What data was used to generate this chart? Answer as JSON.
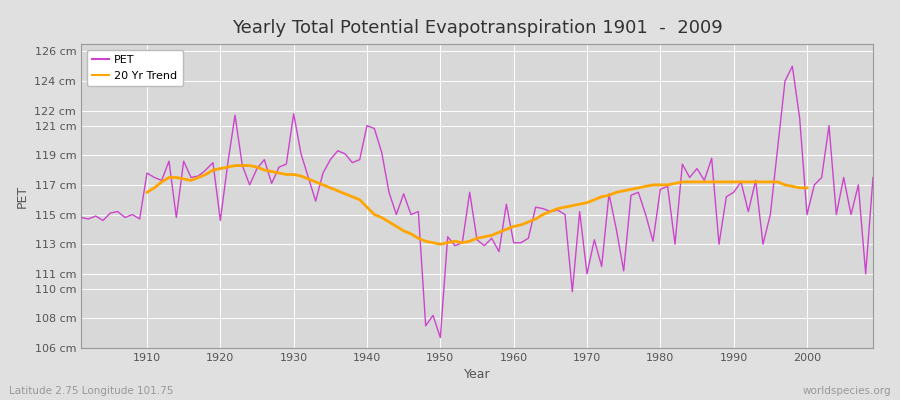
{
  "title": "Yearly Total Potential Evapotranspiration 1901  -  2009",
  "xlabel": "Year",
  "ylabel": "PET",
  "subtitle_left": "Latitude 2.75 Longitude 101.75",
  "subtitle_right": "worldspecies.org",
  "fig_bg_color": "#e0e0e0",
  "plot_bg_color": "#d8d8d8",
  "grid_color": "#ffffff",
  "pet_color": "#cc44cc",
  "trend_color": "#ffa500",
  "xlim": [
    1901,
    2009
  ],
  "ylim": [
    106,
    126.5
  ],
  "ytick_vals": [
    106,
    108,
    110,
    111,
    113,
    115,
    117,
    119,
    121,
    122,
    124,
    126
  ],
  "xtick_vals": [
    1910,
    1920,
    1930,
    1940,
    1950,
    1960,
    1970,
    1980,
    1990,
    2000
  ],
  "years": [
    1901,
    1902,
    1903,
    1904,
    1905,
    1906,
    1907,
    1908,
    1909,
    1910,
    1911,
    1912,
    1913,
    1914,
    1915,
    1916,
    1917,
    1918,
    1919,
    1920,
    1921,
    1922,
    1923,
    1924,
    1925,
    1926,
    1927,
    1928,
    1929,
    1930,
    1931,
    1932,
    1933,
    1934,
    1935,
    1936,
    1937,
    1938,
    1939,
    1940,
    1941,
    1942,
    1943,
    1944,
    1945,
    1946,
    1947,
    1948,
    1949,
    1950,
    1951,
    1952,
    1953,
    1954,
    1955,
    1956,
    1957,
    1958,
    1959,
    1960,
    1961,
    1962,
    1963,
    1964,
    1965,
    1966,
    1967,
    1968,
    1969,
    1970,
    1971,
    1972,
    1973,
    1974,
    1975,
    1976,
    1977,
    1978,
    1979,
    1980,
    1981,
    1982,
    1983,
    1984,
    1985,
    1986,
    1987,
    1988,
    1989,
    1990,
    1991,
    1992,
    1993,
    1994,
    1995,
    1996,
    1997,
    1998,
    1999,
    2000,
    2001,
    2002,
    2003,
    2004,
    2005,
    2006,
    2007,
    2008,
    2009
  ],
  "pet": [
    114.8,
    114.7,
    114.9,
    114.6,
    115.1,
    115.2,
    114.8,
    115.0,
    114.7,
    117.8,
    117.5,
    117.3,
    118.6,
    114.8,
    118.6,
    117.5,
    117.6,
    118.0,
    118.5,
    114.6,
    118.4,
    121.7,
    118.3,
    117.0,
    118.1,
    118.7,
    117.1,
    118.2,
    118.4,
    121.8,
    119.1,
    117.5,
    115.9,
    117.8,
    118.7,
    119.3,
    119.1,
    118.5,
    118.7,
    121.0,
    120.8,
    119.2,
    116.5,
    115.0,
    116.4,
    115.0,
    115.2,
    107.5,
    108.2,
    106.7,
    113.5,
    112.9,
    113.1,
    116.5,
    113.3,
    112.9,
    113.4,
    112.5,
    115.7,
    113.1,
    113.1,
    113.4,
    115.5,
    115.4,
    115.2,
    115.3,
    115.0,
    109.8,
    115.2,
    111.0,
    113.3,
    111.5,
    116.4,
    114.0,
    111.2,
    116.3,
    116.5,
    115.0,
    113.2,
    116.7,
    116.9,
    113.0,
    118.4,
    117.5,
    118.1,
    117.3,
    118.8,
    113.0,
    116.2,
    116.5,
    117.2,
    115.2,
    117.3,
    113.0,
    115.0,
    119.5,
    124.0,
    125.0,
    121.5,
    115.0,
    117.0,
    117.5,
    121.0,
    115.0,
    117.5,
    115.0,
    117.0,
    111.0,
    117.5
  ],
  "trend_years": [
    1910,
    1911,
    1912,
    1913,
    1914,
    1915,
    1916,
    1917,
    1918,
    1919,
    1920,
    1921,
    1922,
    1923,
    1924,
    1925,
    1926,
    1927,
    1928,
    1929,
    1930,
    1931,
    1932,
    1933,
    1934,
    1935,
    1936,
    1937,
    1938,
    1939,
    1940,
    1941,
    1942,
    1943,
    1944,
    1945,
    1946,
    1947,
    1948,
    1949,
    1950,
    1951,
    1952,
    1953,
    1954,
    1955,
    1956,
    1957,
    1958,
    1959,
    1960,
    1961,
    1962,
    1963,
    1964,
    1965,
    1966,
    1967,
    1968,
    1969,
    1970,
    1971,
    1972,
    1973,
    1974,
    1975,
    1976,
    1977,
    1978,
    1979,
    1980,
    1981,
    1982,
    1983,
    1984,
    1985,
    1986,
    1987,
    1988,
    1989,
    1990,
    1991,
    1992,
    1993,
    1994,
    1995,
    1996,
    1997,
    1998,
    1999,
    2000
  ],
  "trend": [
    116.5,
    116.8,
    117.2,
    117.5,
    117.5,
    117.4,
    117.3,
    117.5,
    117.7,
    118.0,
    118.1,
    118.2,
    118.3,
    118.3,
    118.3,
    118.2,
    118.0,
    117.9,
    117.8,
    117.7,
    117.7,
    117.6,
    117.4,
    117.2,
    117.0,
    116.8,
    116.6,
    116.4,
    116.2,
    116.0,
    115.5,
    115.0,
    114.8,
    114.5,
    114.2,
    113.9,
    113.7,
    113.4,
    113.2,
    113.1,
    113.0,
    113.1,
    113.2,
    113.1,
    113.2,
    113.4,
    113.5,
    113.6,
    113.8,
    114.0,
    114.2,
    114.3,
    114.5,
    114.7,
    115.0,
    115.2,
    115.4,
    115.5,
    115.6,
    115.7,
    115.8,
    116.0,
    116.2,
    116.3,
    116.5,
    116.6,
    116.7,
    116.8,
    116.9,
    117.0,
    117.0,
    117.0,
    117.1,
    117.2,
    117.2,
    117.2,
    117.2,
    117.2,
    117.2,
    117.2,
    117.2,
    117.2,
    117.2,
    117.2,
    117.2,
    117.2,
    117.2,
    117.0,
    116.9,
    116.8,
    116.8
  ],
  "title_fontsize": 13,
  "axis_label_fontsize": 9,
  "tick_fontsize": 8,
  "legend_fontsize": 8,
  "subtitle_fontsize": 7.5
}
